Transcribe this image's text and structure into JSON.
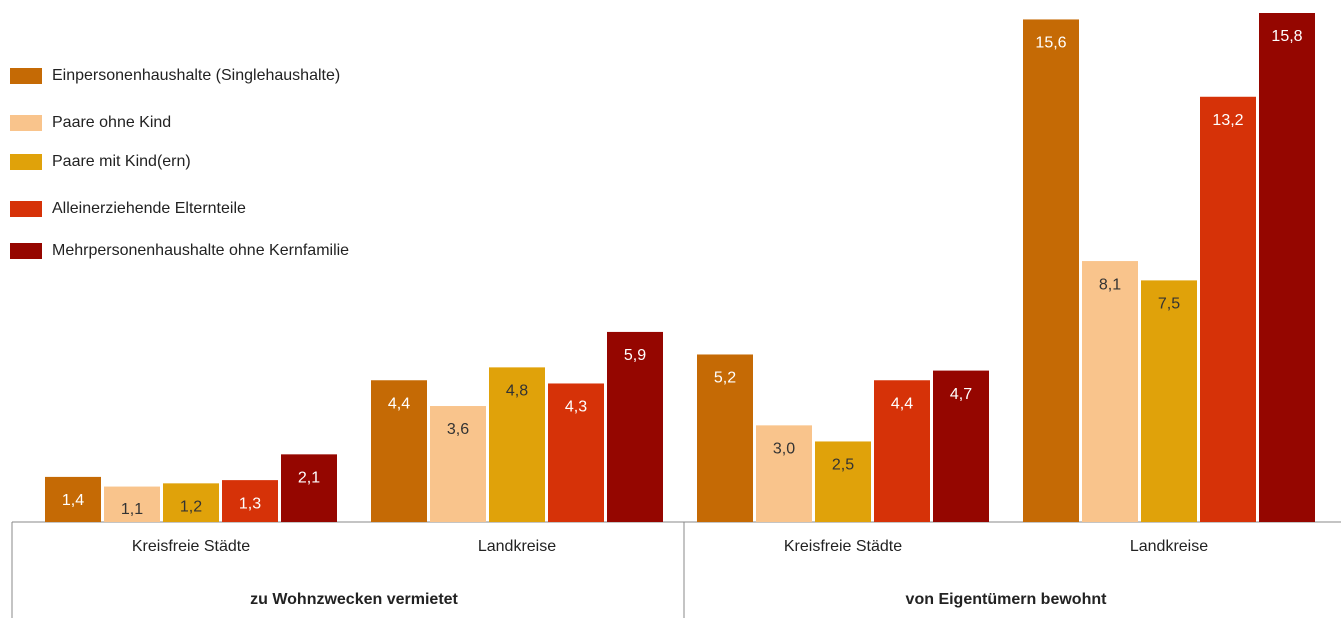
{
  "chart_data": {
    "type": "bar",
    "categories": [
      "Kreisfreie Städte",
      "Landkreise",
      "Kreisfreie Städte",
      "Landkreise"
    ],
    "groups": [
      "zu Wohnzwecken vermietet",
      "von Eigentümern bewohnt"
    ],
    "series": [
      {
        "name": "Einpersonenhaushalte (Singlehaushalte)",
        "color": "#c56a05",
        "label_color": "#ffffff",
        "values": [
          1.4,
          4.4,
          5.2,
          15.6
        ],
        "value_labels": [
          "1,4",
          "4,4",
          "5,2",
          "15,6"
        ]
      },
      {
        "name": "Paare ohne Kind",
        "color": "#f9c48c",
        "label_color": "#333333",
        "values": [
          1.1,
          3.6,
          3.0,
          8.1
        ],
        "value_labels": [
          "1,1",
          "3,6",
          "3,0",
          "8,1"
        ]
      },
      {
        "name": "Paare mit Kind(ern)",
        "color": "#e0a20a",
        "label_color": "#333333",
        "values": [
          1.2,
          4.8,
          2.5,
          7.5
        ],
        "value_labels": [
          "1,2",
          "4,8",
          "2,5",
          "7,5"
        ]
      },
      {
        "name": "Alleinerziehende Elternteile",
        "color": "#d63208",
        "label_color": "#ffffff",
        "values": [
          1.3,
          4.3,
          4.4,
          13.2
        ],
        "value_labels": [
          "1,3",
          "4,3",
          "4,4",
          "13,2"
        ]
      },
      {
        "name": "Mehrpersonenhaushalte ohne Kernfamilie",
        "color": "#950600",
        "label_color": "#ffffff",
        "values": [
          2.1,
          5.9,
          4.7,
          15.8
        ],
        "value_labels": [
          "2,1",
          "5,9",
          "4,7",
          "15,8"
        ]
      }
    ],
    "legend": "top-left"
  }
}
